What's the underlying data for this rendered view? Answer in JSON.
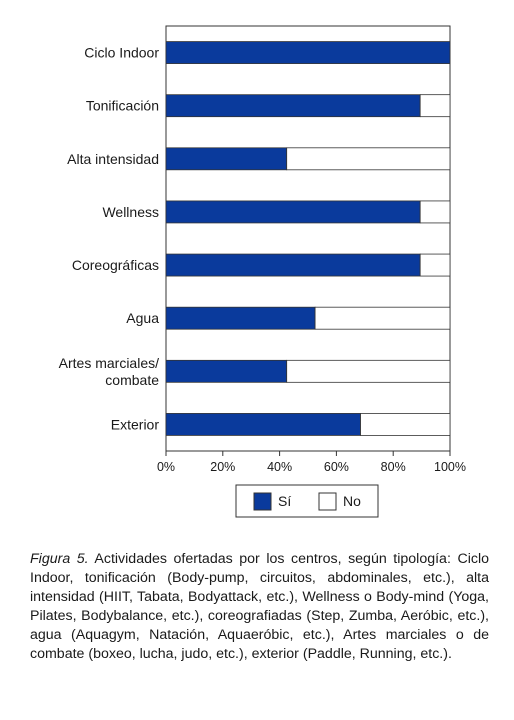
{
  "chart_data": {
    "type": "bar",
    "orientation": "horizontal",
    "stacked": true,
    "categories": [
      "Ciclo Indoor",
      "Tonificación",
      "Alta intensidad",
      "Wellness",
      "Coreográficas",
      "Agua",
      "Artes marciales/\ncombate",
      "Exterior"
    ],
    "series": [
      {
        "name": "Sí",
        "color": "#0a3a9c",
        "values": [
          100,
          89.5,
          42.5,
          89.5,
          89.5,
          52.5,
          42.5,
          68.5
        ]
      },
      {
        "name": "No",
        "color": "#ffffff",
        "values": [
          0,
          10.5,
          57.5,
          10.5,
          10.5,
          47.5,
          57.5,
          31.5
        ]
      }
    ],
    "xlim": [
      0,
      100
    ],
    "xticks": [
      "0%",
      "20%",
      "40%",
      "60%",
      "80%",
      "100%"
    ],
    "grid": false,
    "legend_position": "bottom"
  },
  "caption": {
    "figure_label": "Figura 5.",
    "text": " Actividades ofertadas por los centros, según tipología: Ciclo Indoor, tonificación (Body-pump, circuitos, abdominales, etc.), alta intensidad (HIIT, Tabata, Bodyattack, etc.), Wellness o Body-mind (Yoga, Pilates, Bodybalance, etc.), coreografiadas (Step, Zumba, Aeróbic, etc.), agua (Aquagym, Natación, Aquaeróbic, etc.), Artes marciales o de combate (boxeo, lucha, judo, etc.), exterior (Paddle, Running, etc.)."
  }
}
